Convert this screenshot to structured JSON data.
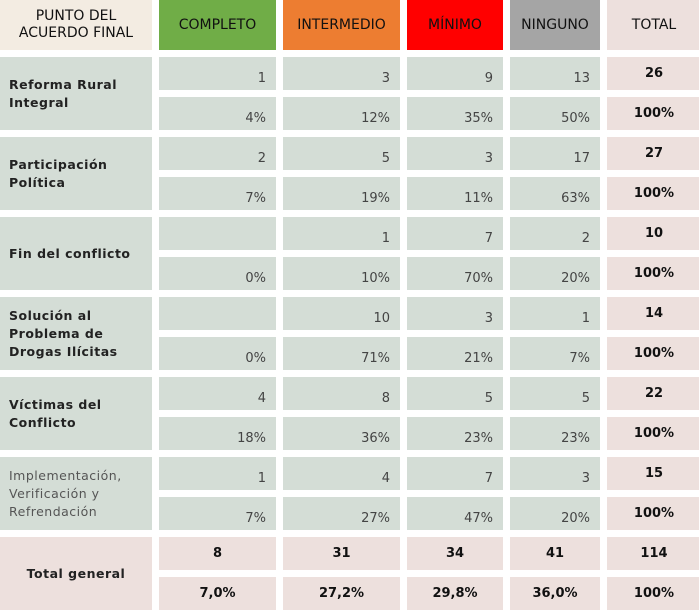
{
  "header": {
    "label": "PUNTO DEL ACUERDO FINAL",
    "columns": [
      {
        "label": "COMPLETO",
        "color": "#70ad47"
      },
      {
        "label": "INTERMEDIO",
        "color": "#ed7d31"
      },
      {
        "label": "MÍNIMO",
        "color": "#ff0000"
      },
      {
        "label": "NINGUNO",
        "color": "#a5a5a5"
      },
      {
        "label": "TOTAL",
        "color": "#ede0dd"
      }
    ],
    "label_bg": "#f3ece2"
  },
  "rows": [
    {
      "label": "Reforma Rural Integral",
      "counts": [
        "1",
        "3",
        "9",
        "13"
      ],
      "total": "26",
      "pcts": [
        "4%",
        "12%",
        "35%",
        "50%"
      ],
      "total_pct": "100%"
    },
    {
      "label": "Participación Política",
      "counts": [
        "2",
        "5",
        "3",
        "17"
      ],
      "total": "27",
      "pcts": [
        "7%",
        "19%",
        "11%",
        "63%"
      ],
      "total_pct": "100%"
    },
    {
      "label": "Fin del conflicto",
      "counts": [
        "",
        "1",
        "7",
        "2"
      ],
      "total": "10",
      "pcts": [
        "0%",
        "10%",
        "70%",
        "20%"
      ],
      "total_pct": "100%"
    },
    {
      "label": "Solución al Problema de Drogas Ilícitas",
      "counts": [
        "",
        "10",
        "3",
        "1"
      ],
      "total": "14",
      "pcts": [
        "0%",
        "71%",
        "21%",
        "7%"
      ],
      "total_pct": "100%"
    },
    {
      "label": "Víctimas del Conflicto",
      "counts": [
        "4",
        "8",
        "5",
        "5"
      ],
      "total": "22",
      "pcts": [
        "18%",
        "36%",
        "23%",
        "23%"
      ],
      "total_pct": "100%"
    },
    {
      "label": "Implementación, Verificación y Refrendación",
      "light": true,
      "counts": [
        "1",
        "4",
        "7",
        "3"
      ],
      "total": "15",
      "pcts": [
        "7%",
        "27%",
        "47%",
        "20%"
      ],
      "total_pct": "100%"
    }
  ],
  "total_general": {
    "label": "Total general",
    "counts": [
      "8",
      "31",
      "34",
      "41"
    ],
    "total": "114",
    "pcts": [
      "7,0%",
      "27,2%",
      "29,8%",
      "36,0%"
    ],
    "total_pct": "100%"
  }
}
